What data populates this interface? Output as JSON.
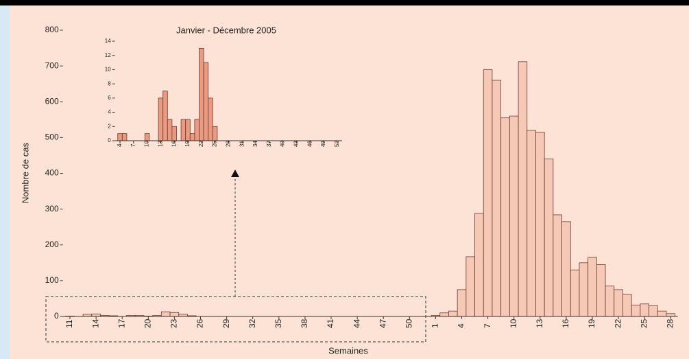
{
  "chart_data": [
    {
      "type": "bar",
      "x_label": "Semaines",
      "y_label": "Nombre de cas",
      "color": "#f6c9b6",
      "categories": [
        "11",
        null,
        null,
        "14",
        null,
        null,
        "17",
        null,
        null,
        "20",
        null,
        null,
        "23",
        null,
        null,
        "26",
        null,
        null,
        "29",
        null,
        null,
        "32",
        null,
        null,
        "35",
        null,
        null,
        "38",
        null,
        null,
        "41",
        null,
        null,
        "44",
        null,
        null,
        "47",
        null,
        null,
        "50",
        null,
        null,
        "1",
        null,
        null,
        "4",
        null,
        null,
        "7",
        null,
        null,
        "10",
        null,
        null,
        "13",
        null,
        null,
        "16",
        null,
        null,
        "19",
        null,
        null,
        "22",
        null,
        null,
        "25",
        null,
        null,
        "28"
      ],
      "values": [
        1,
        0,
        6,
        7,
        3,
        2,
        0,
        3,
        3,
        1,
        3,
        13,
        11,
        6,
        2,
        0,
        0,
        0,
        0,
        0,
        0,
        0,
        0,
        0,
        0,
        0,
        0,
        0,
        0,
        0,
        0,
        0,
        0,
        0,
        0,
        0,
        0,
        0,
        0,
        0,
        0,
        0,
        3,
        10,
        15,
        75,
        167,
        288,
        690,
        660,
        555,
        560,
        712,
        520,
        515,
        440,
        284,
        265,
        130,
        150,
        165,
        145,
        85,
        75,
        62,
        32,
        35,
        30,
        15,
        8
      ],
      "ylim": [
        0,
        800
      ],
      "yticks": [
        0,
        100,
        200,
        300,
        400,
        500,
        600,
        700,
        800
      ]
    },
    {
      "type": "bar",
      "title": "Janvier - Décembre 2005",
      "color": "#e99a80",
      "categories": [
        "4",
        null,
        null,
        "7",
        null,
        null,
        "10",
        null,
        null,
        "13",
        null,
        null,
        "16",
        null,
        null,
        "19",
        null,
        null,
        "22",
        null,
        null,
        "25",
        null,
        null,
        "28",
        null,
        null,
        "31",
        null,
        null,
        "34",
        null,
        null,
        "37",
        null,
        null,
        "40",
        null,
        null,
        "43",
        null,
        null,
        "46",
        null,
        null,
        "49",
        null,
        null,
        "52"
      ],
      "values": [
        1,
        1,
        0,
        0,
        0,
        0,
        1,
        0,
        0,
        6,
        7,
        3,
        2,
        0,
        3,
        3,
        1,
        3,
        13,
        11,
        6,
        2,
        0,
        0,
        0,
        0,
        0,
        0,
        0,
        0,
        0,
        0,
        0,
        0,
        0,
        0,
        0,
        0,
        0,
        0,
        0,
        0,
        0,
        0,
        0,
        0,
        0,
        0,
        0
      ],
      "ylim": [
        0,
        14
      ],
      "yticks": [
        0,
        2,
        4,
        6,
        8,
        10,
        12,
        14
      ]
    }
  ]
}
